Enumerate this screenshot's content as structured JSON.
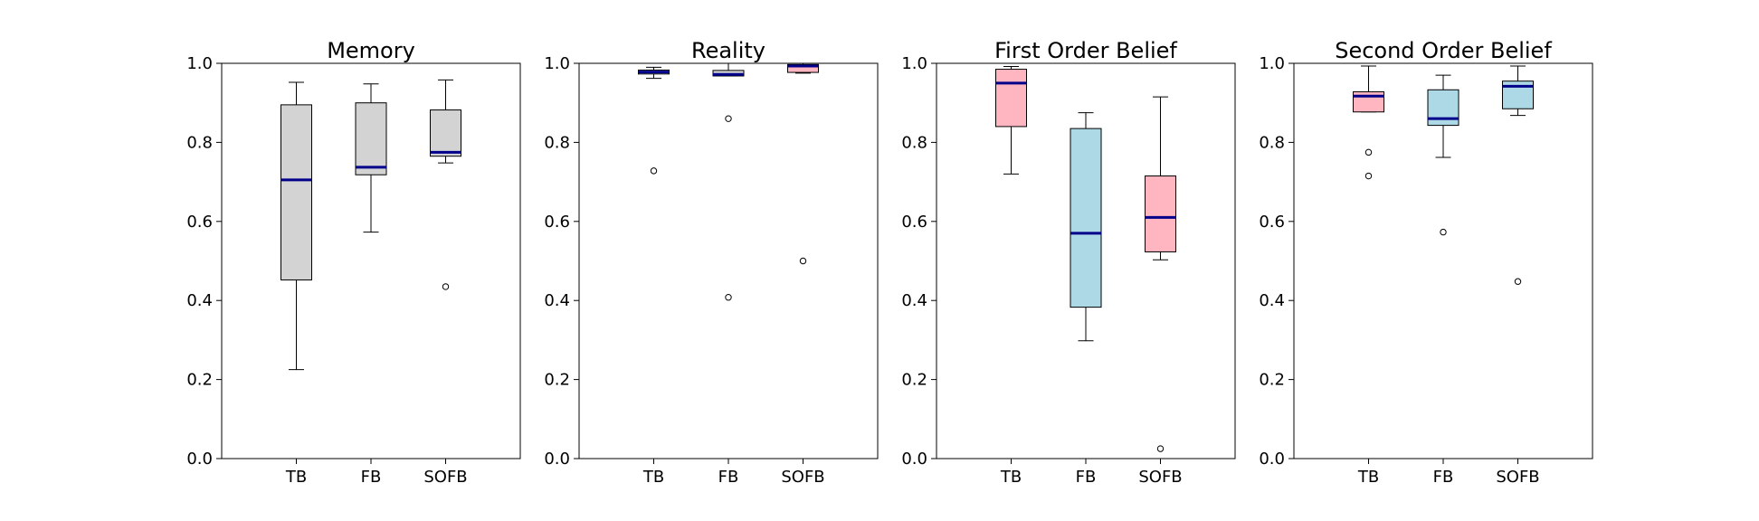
{
  "chart_data": [
    {
      "type": "box",
      "title": "Memory",
      "categories": [
        "TB",
        "FB",
        "SOFB"
      ],
      "ylim": [
        0.0,
        1.0
      ],
      "yticks": [
        "0.0",
        "0.2",
        "0.4",
        "0.6",
        "0.8",
        "1.0"
      ],
      "box_colors": [
        "#d3d3d3",
        "#d3d3d3",
        "#d3d3d3"
      ],
      "boxes": [
        {
          "whislo": 0.225,
          "q1": 0.452,
          "med": 0.705,
          "q3": 0.895,
          "whishi": 0.952,
          "fliers": []
        },
        {
          "whislo": 0.573,
          "q1": 0.718,
          "med": 0.737,
          "q3": 0.9,
          "whishi": 0.948,
          "fliers": []
        },
        {
          "whislo": 0.748,
          "q1": 0.765,
          "med": 0.775,
          "q3": 0.882,
          "whishi": 0.958,
          "fliers": [
            0.435
          ]
        }
      ]
    },
    {
      "type": "box",
      "title": "Reality",
      "categories": [
        "TB",
        "FB",
        "SOFB"
      ],
      "ylim": [
        0.0,
        1.0
      ],
      "yticks": [
        "0.0",
        "0.2",
        "0.4",
        "0.6",
        "0.8",
        "1.0"
      ],
      "box_colors": [
        "#d3d3d3",
        "#d3d3d3",
        "#ffb6c1"
      ],
      "boxes": [
        {
          "whislo": 0.962,
          "q1": 0.973,
          "med": 0.978,
          "q3": 0.983,
          "whishi": 0.99,
          "fliers": [
            0.728
          ]
        },
        {
          "whislo": 0.968,
          "q1": 0.968,
          "med": 0.972,
          "q3": 0.982,
          "whishi": 1.0,
          "fliers": [
            0.86,
            0.408
          ]
        },
        {
          "whislo": 0.975,
          "q1": 0.977,
          "med": 0.993,
          "q3": 0.997,
          "whishi": 1.0,
          "fliers": [
            0.5
          ]
        }
      ]
    },
    {
      "type": "box",
      "title": "First Order Belief",
      "categories": [
        "TB",
        "FB",
        "SOFB"
      ],
      "ylim": [
        0.0,
        1.0
      ],
      "yticks": [
        "0.0",
        "0.2",
        "0.4",
        "0.6",
        "0.8",
        "1.0"
      ],
      "box_colors": [
        "#ffb6c1",
        "#add8e6",
        "#ffb6c1"
      ],
      "boxes": [
        {
          "whislo": 0.72,
          "q1": 0.84,
          "med": 0.95,
          "q3": 0.985,
          "whishi": 0.992,
          "fliers": []
        },
        {
          "whislo": 0.298,
          "q1": 0.383,
          "med": 0.57,
          "q3": 0.835,
          "whishi": 0.875,
          "fliers": []
        },
        {
          "whislo": 0.503,
          "q1": 0.523,
          "med": 0.61,
          "q3": 0.715,
          "whishi": 0.915,
          "fliers": [
            0.025
          ]
        }
      ]
    },
    {
      "type": "box",
      "title": "Second Order Belief",
      "categories": [
        "TB",
        "FB",
        "SOFB"
      ],
      "ylim": [
        0.0,
        1.0
      ],
      "yticks": [
        "0.0",
        "0.2",
        "0.4",
        "0.6",
        "0.8",
        "1.0"
      ],
      "box_colors": [
        "#ffb6c1",
        "#add8e6",
        "#add8e6"
      ],
      "boxes": [
        {
          "whislo": 0.877,
          "q1": 0.877,
          "med": 0.917,
          "q3": 0.928,
          "whishi": 0.993,
          "fliers": [
            0.775,
            0.715
          ]
        },
        {
          "whislo": 0.762,
          "q1": 0.843,
          "med": 0.86,
          "q3": 0.933,
          "whishi": 0.97,
          "fliers": [
            0.573
          ]
        },
        {
          "whislo": 0.868,
          "q1": 0.885,
          "med": 0.942,
          "q3": 0.955,
          "whishi": 0.993,
          "fliers": [
            0.448
          ]
        }
      ]
    }
  ],
  "style": {
    "median_color": "#00008b",
    "line_color": "#000000"
  }
}
